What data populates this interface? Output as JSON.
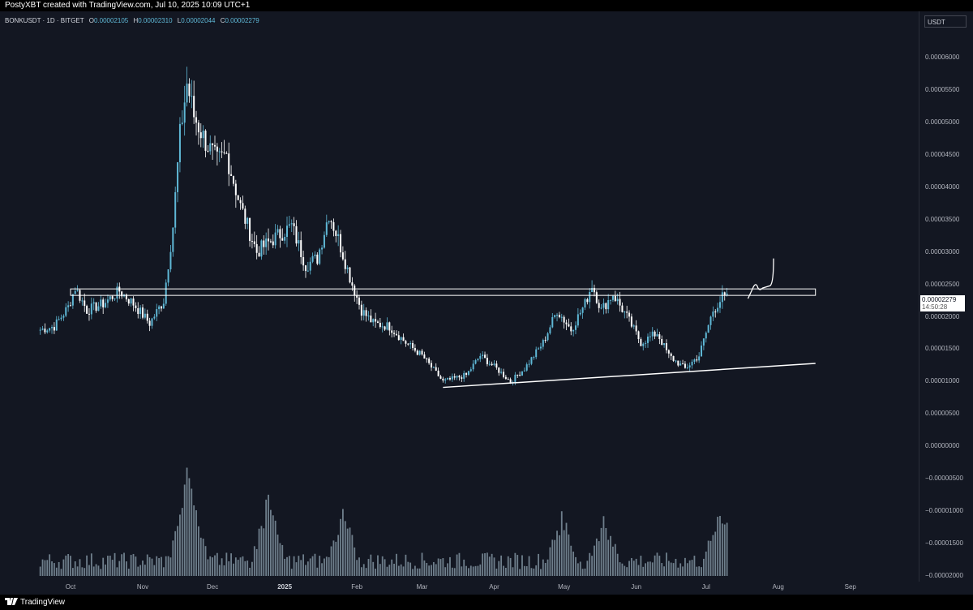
{
  "header": {
    "credit": "PostyXBT created with TradingView.com, Jul 10, 2025 10:09 UTC+1"
  },
  "legend": {
    "symbol": "BONKUSDT · 1D · BITGET",
    "open_label": "O",
    "open": "0.00002105",
    "high_label": "H",
    "high": "0.00002310",
    "low_label": "L",
    "low": "0.00002044",
    "close_label": "C",
    "close": "0.00002279"
  },
  "price_axis": {
    "unit": "USDT",
    "last_price": "0.00002279",
    "countdown": "14:50:28"
  },
  "footer": {
    "brand": "TradingView"
  },
  "colors": {
    "background": "#131722",
    "up": "#5fb8d6",
    "down": "#ffffff",
    "drawing": "#ffffff",
    "volume": "#8fa3b0"
  },
  "chart_data": {
    "type": "candlestick",
    "pair": "BONKUSDT",
    "interval": "1D",
    "exchange": "BITGET",
    "x_ticks": [
      "Oct",
      "Nov",
      "Dec",
      "2025",
      "Feb",
      "Mar",
      "Apr",
      "May",
      "Jun",
      "Jul",
      "Aug",
      "Sep"
    ],
    "y_ticks": [
      "0.00006000",
      "0.00005500",
      "0.00005000",
      "0.00004500",
      "0.00004000",
      "0.00003500",
      "0.00003000",
      "0.00002500",
      "0.00002000",
      "0.00001500",
      "0.00001000",
      "0.00000500",
      "0.00000000",
      "−0.00000500",
      "−0.00001000",
      "−0.00001500",
      "−0.00002000"
    ],
    "y_values": [
      6e-05,
      5.5e-05,
      5e-05,
      4.5e-05,
      4e-05,
      3.5e-05,
      3e-05,
      2.5e-05,
      2e-05,
      1.5e-05,
      1e-05,
      5e-06,
      0,
      -5e-06,
      -1e-05,
      -1.5e-05,
      -2e-05
    ],
    "ylim": [
      -2.02e-05,
      6.38e-05
    ],
    "close_path": [
      {
        "date": "2024-09-18",
        "close": 1.8e-05
      },
      {
        "date": "2024-09-24",
        "close": 1.85e-05
      },
      {
        "date": "2024-09-30",
        "close": 2.15e-05
      },
      {
        "date": "2024-10-03",
        "close": 2.45e-05
      },
      {
        "date": "2024-10-08",
        "close": 2.1e-05
      },
      {
        "date": "2024-10-15",
        "close": 2.2e-05
      },
      {
        "date": "2024-10-22",
        "close": 2.4e-05
      },
      {
        "date": "2024-10-28",
        "close": 2.2e-05
      },
      {
        "date": "2024-11-04",
        "close": 1.9e-05
      },
      {
        "date": "2024-11-10",
        "close": 2.25e-05
      },
      {
        "date": "2024-11-14",
        "close": 3.4e-05
      },
      {
        "date": "2024-11-17",
        "close": 4.8e-05
      },
      {
        "date": "2024-11-20",
        "close": 5.6e-05
      },
      {
        "date": "2024-11-23",
        "close": 5.1e-05
      },
      {
        "date": "2024-11-28",
        "close": 4.7e-05
      },
      {
        "date": "2024-12-03",
        "close": 4.4e-05
      },
      {
        "date": "2024-12-07",
        "close": 4.5e-05
      },
      {
        "date": "2024-12-13",
        "close": 3.7e-05
      },
      {
        "date": "2024-12-20",
        "close": 3e-05
      },
      {
        "date": "2024-12-27",
        "close": 3.2e-05
      },
      {
        "date": "2025-01-04",
        "close": 3.4e-05
      },
      {
        "date": "2025-01-10",
        "close": 2.8e-05
      },
      {
        "date": "2025-01-15",
        "close": 2.9e-05
      },
      {
        "date": "2025-01-20",
        "close": 3.6e-05
      },
      {
        "date": "2025-01-24",
        "close": 3.2e-05
      },
      {
        "date": "2025-01-30",
        "close": 2.5e-05
      },
      {
        "date": "2025-02-03",
        "close": 2.1e-05
      },
      {
        "date": "2025-02-08",
        "close": 1.9e-05
      },
      {
        "date": "2025-02-15",
        "close": 1.85e-05
      },
      {
        "date": "2025-02-22",
        "close": 1.6e-05
      },
      {
        "date": "2025-03-01",
        "close": 1.4e-05
      },
      {
        "date": "2025-03-10",
        "close": 1e-05
      },
      {
        "date": "2025-03-20",
        "close": 1.1e-05
      },
      {
        "date": "2025-03-26",
        "close": 1.4e-05
      },
      {
        "date": "2025-04-02",
        "close": 1.2e-05
      },
      {
        "date": "2025-04-08",
        "close": 1e-05
      },
      {
        "date": "2025-04-14",
        "close": 1.2e-05
      },
      {
        "date": "2025-04-22",
        "close": 1.6e-05
      },
      {
        "date": "2025-04-28",
        "close": 2.1e-05
      },
      {
        "date": "2025-05-04",
        "close": 1.8e-05
      },
      {
        "date": "2025-05-10",
        "close": 2.2e-05
      },
      {
        "date": "2025-05-13",
        "close": 2.5e-05
      },
      {
        "date": "2025-05-17",
        "close": 2.1e-05
      },
      {
        "date": "2025-05-22",
        "close": 2.35e-05
      },
      {
        "date": "2025-05-28",
        "close": 2e-05
      },
      {
        "date": "2025-06-03",
        "close": 1.6e-05
      },
      {
        "date": "2025-06-10",
        "close": 1.75e-05
      },
      {
        "date": "2025-06-15",
        "close": 1.4e-05
      },
      {
        "date": "2025-06-22",
        "close": 1.2e-05
      },
      {
        "date": "2025-06-28",
        "close": 1.4e-05
      },
      {
        "date": "2025-07-04",
        "close": 2.1e-05
      },
      {
        "date": "2025-07-08",
        "close": 2.3e-05
      },
      {
        "date": "2025-07-10",
        "close": 2.28e-05
      }
    ],
    "volume_profile_peaks": [
      {
        "date": "2024-11-21",
        "rel": 1.0
      },
      {
        "date": "2024-11-20",
        "rel": 0.8
      },
      {
        "date": "2024-12-25",
        "rel": 0.68
      },
      {
        "date": "2025-01-26",
        "rel": 0.54
      },
      {
        "date": "2025-04-30",
        "rel": 0.53
      },
      {
        "date": "2025-05-18",
        "rel": 0.54
      },
      {
        "date": "2025-07-07",
        "rel": 0.58
      }
    ],
    "drawings": [
      {
        "type": "horizontal-zone",
        "from": "2024-10-01",
        "to": "2025-08-17",
        "low": 2.33e-05,
        "high": 2.43e-05
      },
      {
        "type": "trendline",
        "from": {
          "date": "2025-03-10",
          "price": 9.1e-06
        },
        "to": {
          "date": "2025-08-17",
          "price": 1.28e-05
        }
      },
      {
        "type": "projection-arrow",
        "from": {
          "date": "2025-07-19",
          "price": 2.28e-05
        },
        "to": {
          "date": "2025-07-30",
          "price": 2.9e-05
        }
      }
    ]
  }
}
